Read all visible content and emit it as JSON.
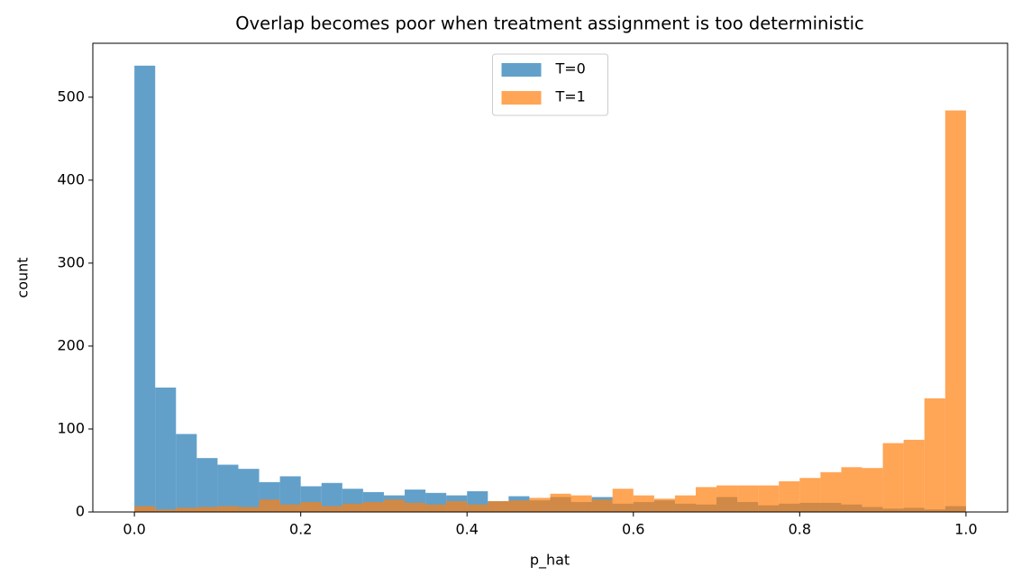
{
  "chart_data": {
    "type": "histogram",
    "title": "Overlap becomes poor when treatment assignment is too deterministic",
    "x_label": "p_hat",
    "y_label": "count",
    "bins": [
      0,
      0.025,
      0.05,
      0.075,
      0.1,
      0.125,
      0.15,
      0.175,
      0.2,
      0.225,
      0.25,
      0.275,
      0.3,
      0.325,
      0.35,
      0.375,
      0.4,
      0.425,
      0.45,
      0.475,
      0.5,
      0.525,
      0.55,
      0.575,
      0.6,
      0.625,
      0.65,
      0.675,
      0.7,
      0.725,
      0.75,
      0.775,
      0.8,
      0.825,
      0.85,
      0.875,
      0.9,
      0.925,
      0.95,
      0.975,
      1
    ],
    "series": [
      {
        "name": "T=0",
        "color": "#1f77b4",
        "values": [
          538,
          150,
          94,
          65,
          57,
          52,
          36,
          43,
          31,
          35,
          28,
          24,
          20,
          27,
          23,
          20,
          25,
          13,
          19,
          14,
          18,
          12,
          18,
          10,
          12,
          14,
          10,
          9,
          18,
          12,
          8,
          10,
          11,
          11,
          9,
          6,
          4,
          5,
          3,
          7
        ]
      },
      {
        "name": "T=1",
        "color": "#ff7f0e",
        "values": [
          7,
          3,
          5,
          6,
          7,
          6,
          15,
          9,
          12,
          7,
          10,
          12,
          15,
          11,
          9,
          13,
          9,
          13,
          14,
          17,
          22,
          20,
          15,
          28,
          20,
          16,
          20,
          30,
          32,
          32,
          32,
          37,
          41,
          48,
          54,
          53,
          83,
          87,
          137,
          484
        ]
      }
    ],
    "opacity": 0.7,
    "xlim": [
      -0.05,
      1.05
    ],
    "ylim": [
      0,
      565
    ],
    "xticks": [
      {
        "value": 0,
        "label": "0.0"
      },
      0.2,
      0.4,
      0.6,
      0.8,
      {
        "value": 1,
        "label": "1.0"
      }
    ],
    "yticks": [
      0,
      100,
      200,
      300,
      400,
      500
    ],
    "legend": "upper center",
    "grid": false
  }
}
